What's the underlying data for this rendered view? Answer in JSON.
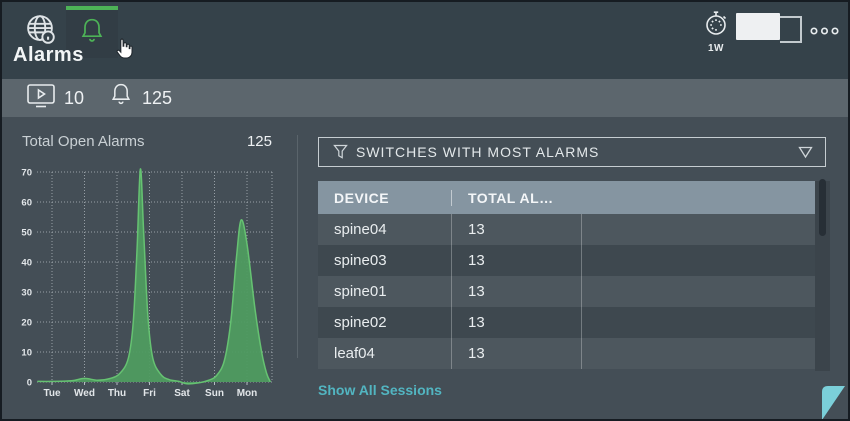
{
  "palette": {
    "top_bar_bg": "#35424a",
    "summary_bar_bg": "#5c666d",
    "content_bg": "#444e56",
    "accent_green": "#4db257",
    "chart_fill": "#4f9b60",
    "chart_stroke": "#66c272",
    "table_header_bg": "#8595a1",
    "row_light": "#4d575e",
    "row_dark": "#3e484f",
    "link_teal": "#52b5c1",
    "corner_teal": "#7bcfd9"
  },
  "header": {
    "title": "Alarms",
    "nav": [
      {
        "id": "network",
        "icon": "globe-info-icon",
        "active": false
      },
      {
        "id": "alarms",
        "icon": "bell-icon",
        "active": true
      }
    ],
    "time_range_label": "1W",
    "timer_icon": "stopwatch-icon",
    "menu_icon": "ellipsis-icon",
    "card_size_control": "size-picker"
  },
  "summary_bar": {
    "screen_icon": "monitor-play-icon",
    "screen_count": "10",
    "bell_icon": "bell-icon",
    "bell_count": "125"
  },
  "left_panel": {
    "title": "Total Open Alarms",
    "value": "125"
  },
  "chart_data": {
    "type": "area",
    "title": "Total Open Alarms",
    "x_tick_labels": [
      "Tue",
      "Wed",
      "Thu",
      "Fri",
      "Sat",
      "Sun",
      "Mon"
    ],
    "y_ticks": [
      0,
      10,
      20,
      30,
      40,
      50,
      60,
      70
    ],
    "ylim": [
      0,
      70
    ],
    "xlim_days": [
      -0.45,
      6.75
    ],
    "grid": "dotted",
    "legend": "none",
    "series": [
      {
        "name": "open-alarms",
        "stroke": "#66c272",
        "fill": "#4f9b60",
        "points": [
          [
            -0.45,
            0.2
          ],
          [
            0,
            0.2
          ],
          [
            0.6,
            0.4
          ],
          [
            1,
            1.2
          ],
          [
            1.4,
            0.6
          ],
          [
            1.8,
            1.2
          ],
          [
            2.1,
            3
          ],
          [
            2.35,
            8
          ],
          [
            2.5,
            20
          ],
          [
            2.62,
            45
          ],
          [
            2.72,
            71
          ],
          [
            2.82,
            50
          ],
          [
            2.95,
            22
          ],
          [
            3.1,
            8
          ],
          [
            3.35,
            2.5
          ],
          [
            3.6,
            0.8
          ],
          [
            3.9,
            0.2
          ],
          [
            4.15,
            -0.6
          ],
          [
            4.5,
            -0.3
          ],
          [
            4.8,
            0.5
          ],
          [
            5.05,
            2
          ],
          [
            5.3,
            7
          ],
          [
            5.5,
            20
          ],
          [
            5.68,
            42
          ],
          [
            5.82,
            54
          ],
          [
            6,
            46
          ],
          [
            6.25,
            24
          ],
          [
            6.45,
            10
          ],
          [
            6.6,
            3
          ],
          [
            6.72,
            0
          ]
        ]
      }
    ]
  },
  "right_panel": {
    "filter_bar": {
      "icon": "funnel-icon",
      "label": "SWITCHES WITH MOST ALARMS",
      "dropdown_icon": "triangle-down-icon"
    },
    "table": {
      "columns": [
        "DEVICE",
        "TOTAL AL…",
        ""
      ],
      "rows": [
        {
          "device": "spine04",
          "total": "13"
        },
        {
          "device": "spine03",
          "total": "13"
        },
        {
          "device": "spine01",
          "total": "13"
        },
        {
          "device": "spine02",
          "total": "13"
        },
        {
          "device": "leaf04",
          "total": "13"
        }
      ]
    },
    "footer_link": "Show All Sessions"
  }
}
